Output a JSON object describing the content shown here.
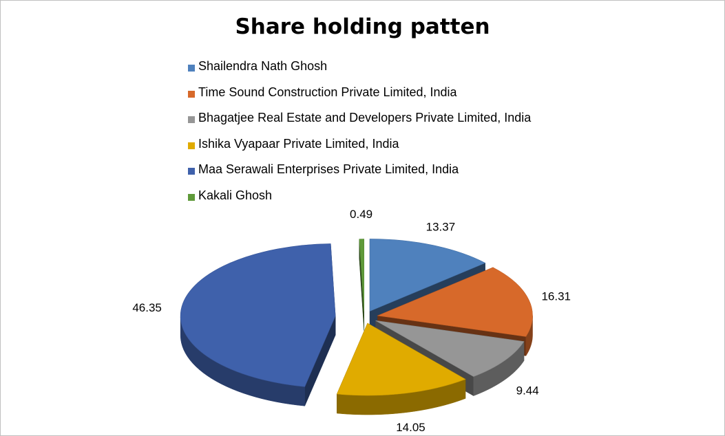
{
  "chart_data": {
    "type": "pie",
    "title": "Share holding patten",
    "style": "3d-exploded",
    "legend_position": "top",
    "slices": [
      {
        "label": "Shailendra Nath Ghosh",
        "value": 13.37,
        "color": "#4f81bd",
        "value_label": "13.37"
      },
      {
        "label": "Time Sound Construction Private Limited, India",
        "value": 16.31,
        "color": "#d7692a",
        "value_label": "16.31"
      },
      {
        "label": "Bhagatjee Real Estate and Developers Private Limited, India",
        "value": 9.44,
        "color": "#969696",
        "value_label": "9.44"
      },
      {
        "label": "Ishika Vyapaar Private Limited, India",
        "value": 14.05,
        "color": "#e0ab00",
        "value_label": "14.05"
      },
      {
        "label": "Maa Serawali Enterprises Private Limited, India",
        "value": 46.35,
        "color": "#3f61ab",
        "value_label": "46.35"
      },
      {
        "label": "Kakali Ghosh",
        "value": 0.49,
        "color": "#5f9a3a",
        "value_label": "0.49"
      }
    ]
  }
}
